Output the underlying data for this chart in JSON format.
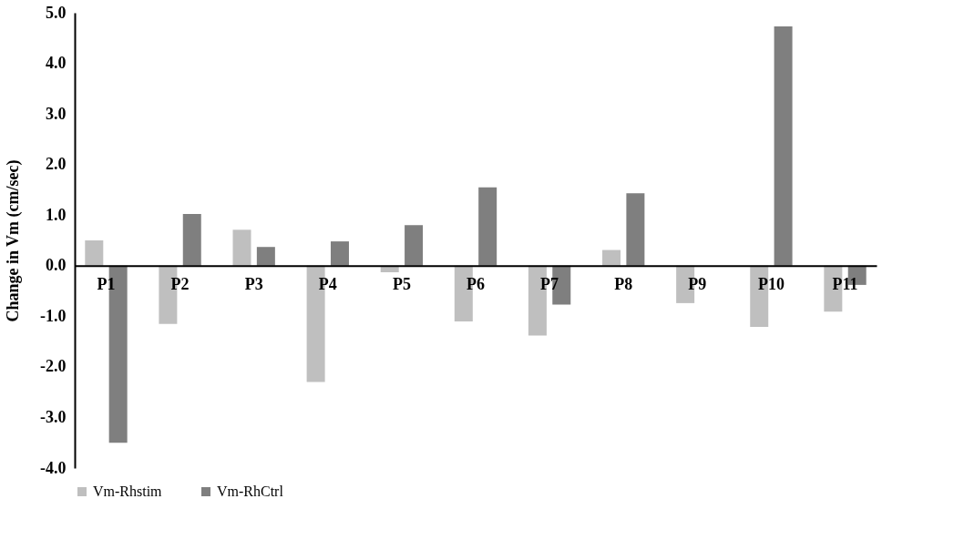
{
  "chart_data": {
    "type": "bar",
    "ylabel": "Change in Vm (cm/sec)",
    "categories": [
      "P1",
      "P2",
      "P3",
      "P4",
      "P5",
      "P6",
      "P7",
      "P8",
      "P9",
      "P10",
      "P11"
    ],
    "series": [
      {
        "name": "Vm-Rhstim",
        "color": "#bfbfbf",
        "values": [
          0.5,
          -1.15,
          0.71,
          -2.3,
          -0.13,
          -1.1,
          -1.38,
          0.31,
          -0.74,
          -1.21,
          -0.91
        ]
      },
      {
        "name": "Vm-RhCtrl",
        "color": "#7f7f7f",
        "values": [
          -3.5,
          1.02,
          0.37,
          0.48,
          0.8,
          1.55,
          -0.77,
          1.43,
          null,
          4.73,
          -0.38
        ]
      }
    ],
    "ylim": [
      -4.0,
      5.0
    ],
    "yticks": [
      {
        "value": -4,
        "label": "-4.0"
      },
      {
        "value": -3,
        "label": "-3.0"
      },
      {
        "value": -2,
        "label": "-2.0"
      },
      {
        "value": -1,
        "label": "-1.0"
      },
      {
        "value": 0,
        "label": "0.0"
      },
      {
        "value": 1,
        "label": "1.0"
      },
      {
        "value": 2,
        "label": "2.0"
      },
      {
        "value": 3,
        "label": "3.0"
      },
      {
        "value": 4,
        "label": "4.0"
      },
      {
        "value": 5,
        "label": "5.0"
      }
    ],
    "grid": false,
    "legend": "bottom"
  }
}
